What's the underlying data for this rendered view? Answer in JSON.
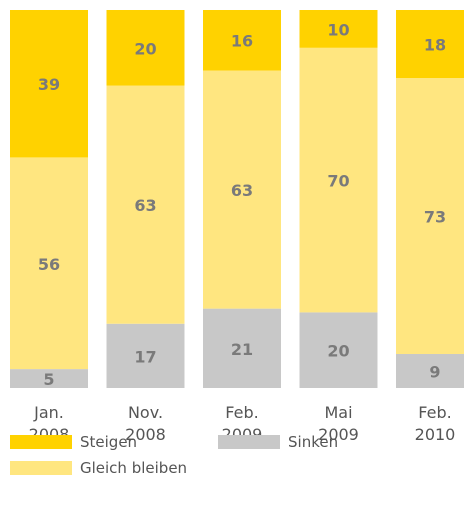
{
  "chart_data": {
    "type": "stacked_bar",
    "categories": [
      "Jan. 2008",
      "Nov. 2008",
      "Feb. 2009",
      "Mai 2009",
      "Feb. 2010"
    ],
    "series": [
      {
        "name": "Sinken",
        "color": "#c8c8c8",
        "values": [
          5,
          17,
          21,
          20,
          9
        ]
      },
      {
        "name": "Gleich bleiben",
        "color": "#ffe680",
        "values": [
          56,
          63,
          63,
          70,
          73
        ]
      },
      {
        "name": "Steigen",
        "color": "#ffd200",
        "values": [
          39,
          20,
          16,
          10,
          18
        ]
      }
    ],
    "ylim": [
      0,
      100
    ]
  }
}
